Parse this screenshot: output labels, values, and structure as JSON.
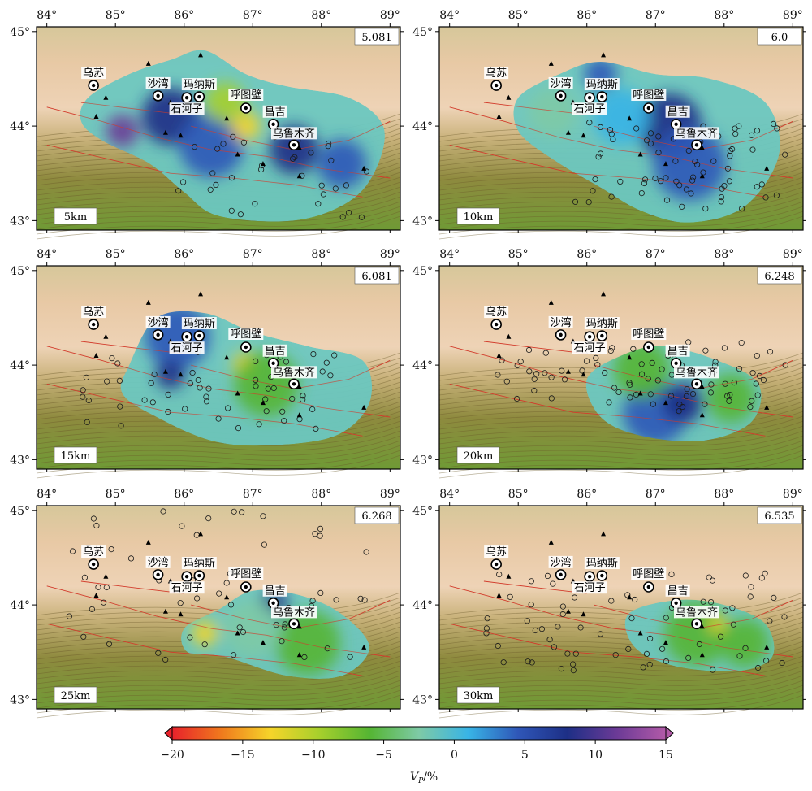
{
  "map": {
    "lon_ticks": [
      "84°",
      "85°",
      "86°",
      "87°",
      "88°",
      "89°"
    ],
    "lat_ticks": [
      "45°",
      "44°",
      "43°"
    ],
    "cities": [
      {
        "name": "乌苏",
        "lon": 84.68,
        "lat": 44.43
      },
      {
        "name": "沙湾",
        "lon": 85.62,
        "lat": 44.32
      },
      {
        "name": "石河子",
        "lon": 86.04,
        "lat": 44.3
      },
      {
        "name": "玛纳斯",
        "lon": 86.22,
        "lat": 44.31
      },
      {
        "name": "呼图壁",
        "lon": 86.9,
        "lat": 44.19
      },
      {
        "name": "昌吉",
        "lon": 87.3,
        "lat": 44.02
      },
      {
        "name": "乌鲁木齐",
        "lon": 87.6,
        "lat": 43.8
      }
    ],
    "stations": [
      {
        "lon": 84.72,
        "lat": 44.1
      },
      {
        "lon": 84.86,
        "lat": 44.3
      },
      {
        "lon": 85.48,
        "lat": 44.66
      },
      {
        "lon": 86.24,
        "lat": 44.75
      },
      {
        "lon": 85.8,
        "lat": 44.25
      },
      {
        "lon": 85.73,
        "lat": 43.93
      },
      {
        "lon": 86.62,
        "lat": 44.08
      },
      {
        "lon": 87.15,
        "lat": 43.6
      },
      {
        "lon": 86.78,
        "lat": 43.7
      },
      {
        "lon": 87.68,
        "lat": 43.77
      },
      {
        "lon": 88.62,
        "lat": 43.55
      },
      {
        "lon": 87.68,
        "lat": 43.47
      },
      {
        "lon": 85.95,
        "lat": 43.9
      }
    ]
  },
  "panels": [
    {
      "depth_label": "5km",
      "ref_velocity": "5.081"
    },
    {
      "depth_label": "10km",
      "ref_velocity": "6.0"
    },
    {
      "depth_label": "15km",
      "ref_velocity": "6.081"
    },
    {
      "depth_label": "20km",
      "ref_velocity": "6.248"
    },
    {
      "depth_label": "25km",
      "ref_velocity": "6.268"
    },
    {
      "depth_label": "30km",
      "ref_velocity": "6.535"
    }
  ],
  "colorbar": {
    "ticks": [
      "−20",
      "−15",
      "−10",
      "−5",
      "0",
      "5",
      "10",
      "15"
    ],
    "label_main": "V",
    "label_sub": "P",
    "label_unit": "/%",
    "colors": [
      "#e8222b",
      "#f07a1d",
      "#f5d52a",
      "#a5cf2c",
      "#55b533",
      "#7ecaa6",
      "#38b4e6",
      "#2f57b8",
      "#1d2f86",
      "#6b3a96",
      "#b25aa8"
    ]
  }
}
